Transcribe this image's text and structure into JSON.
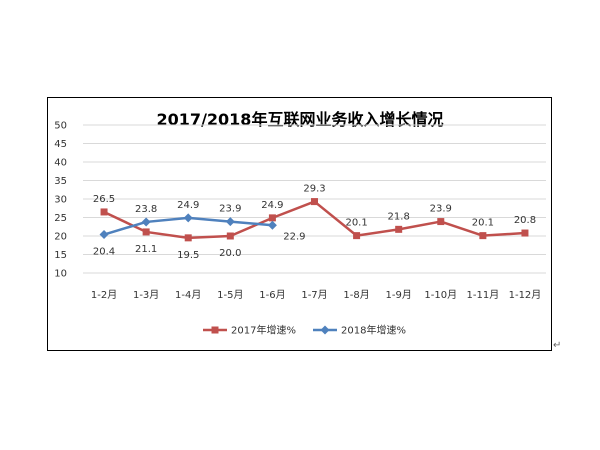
{
  "chart_data": {
    "type": "line",
    "title": "2017/2018年互联网业务收入增长情况",
    "xlabel": "",
    "ylabel": "",
    "ylim": [
      10,
      50
    ],
    "yticks": [
      10,
      15,
      20,
      25,
      30,
      35,
      40,
      45,
      50
    ],
    "grid": true,
    "legend_position": "bottom",
    "categories": [
      "1-2月",
      "1-3月",
      "1-4月",
      "1-5月",
      "1-6月",
      "1-7月",
      "1-8月",
      "1-9月",
      "1-10月",
      "1-11月",
      "1-12月"
    ],
    "series": [
      {
        "name": "2017年增速%",
        "color": "#c0504d",
        "marker": "square",
        "values": [
          26.5,
          21.1,
          19.5,
          20.0,
          24.9,
          29.3,
          20.1,
          21.8,
          23.9,
          20.1,
          20.8
        ],
        "labels": [
          "26.5",
          "21.1",
          "19.5",
          "20.0",
          "24.9",
          "29.3",
          "20.1",
          "21.8",
          "23.9",
          "20.1",
          "20.8"
        ]
      },
      {
        "name": "2018年增速%",
        "color": "#4f81bd",
        "marker": "diamond",
        "values": [
          20.4,
          23.8,
          24.9,
          23.9,
          22.9,
          null,
          null,
          null,
          null,
          null,
          null
        ],
        "labels": [
          "20.4",
          "23.8",
          "24.9",
          "23.9",
          "22.9",
          "",
          "",
          "",
          "",
          "",
          ""
        ]
      }
    ]
  },
  "page": {
    "trailing_mark": "↵"
  }
}
